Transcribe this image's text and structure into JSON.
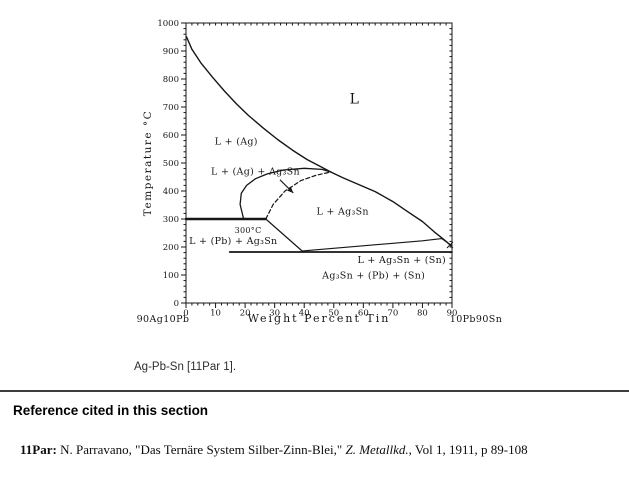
{
  "figure": {
    "caption": "Ag-Pb-Sn [11Par 1]."
  },
  "reference_section": {
    "heading": "Reference cited in this section",
    "reference": {
      "id": "11Par:",
      "pre": " N. Parravano, \"Das Ternäre System Silber-Zinn-Blei,\" ",
      "journal": "Z. Metallkd.",
      "post": ", Vol 1, 1911, p 89-108"
    }
  },
  "chart_data": {
    "type": "line",
    "title": "",
    "xlabel": "Weight Percent Tin",
    "ylabel": "Temperature °C",
    "xlim": [
      0,
      90
    ],
    "ylim": [
      0,
      1000
    ],
    "xticks": [
      0,
      10,
      20,
      30,
      40,
      50,
      60,
      70,
      80,
      90
    ],
    "yticks": [
      0,
      100,
      200,
      300,
      400,
      500,
      600,
      700,
      800,
      900,
      1000
    ],
    "grid": false,
    "corner_labels": {
      "left": "90Ag10Pb",
      "right": "10Pb90Sn"
    },
    "region_labels": [
      {
        "text": "L",
        "x": 57,
        "y": 730,
        "size": 14
      },
      {
        "text": "L + (Ag)",
        "x": 17,
        "y": 578,
        "size": 9.5
      },
      {
        "text": "L + (Ag) + Ag₃Sn",
        "x": 23.5,
        "y": 470,
        "size": 9.5
      },
      {
        "text": "L + Ag₃Sn",
        "x": 53,
        "y": 328,
        "size": 9.5
      },
      {
        "text": "300°C",
        "x": 21,
        "y": 260,
        "size": 8
      },
      {
        "text": "L + (Pb) + Ag₃Sn",
        "x": 16,
        "y": 222,
        "size": 9.5
      },
      {
        "text": "L + Ag₃Sn + (Sn)",
        "x": 73,
        "y": 155,
        "size": 9.5
      },
      {
        "text": "Ag₃Sn + (Pb) + (Sn)",
        "x": 63.5,
        "y": 100,
        "size": 9.5
      }
    ],
    "series": [
      {
        "name": "liquidus-left",
        "style": "solid",
        "width": 1.4,
        "points": [
          [
            0.2,
            950
          ],
          [
            2,
            906
          ],
          [
            5,
            858
          ],
          [
            9,
            806
          ],
          [
            13,
            757
          ],
          [
            17,
            712
          ],
          [
            21,
            671
          ],
          [
            26,
            626
          ],
          [
            31,
            584
          ],
          [
            36,
            546
          ],
          [
            41,
            512
          ],
          [
            45,
            490
          ],
          [
            49,
            468
          ]
        ]
      },
      {
        "name": "liquidus-right",
        "style": "solid",
        "width": 1.4,
        "points": [
          [
            49,
            468
          ],
          [
            53,
            448
          ],
          [
            58,
            425
          ],
          [
            64,
            398
          ],
          [
            70,
            362
          ],
          [
            75,
            326
          ],
          [
            80,
            291
          ],
          [
            84,
            254
          ],
          [
            87,
            229
          ],
          [
            89.8,
            204
          ]
        ]
      },
      {
        "name": "ag-ag3sn-boundary",
        "style": "solid",
        "width": 1.3,
        "points": [
          [
            19.5,
            300
          ],
          [
            18.3,
            352
          ],
          [
            18.7,
            392
          ],
          [
            20.5,
            420
          ],
          [
            23.5,
            444
          ],
          [
            27.5,
            461
          ],
          [
            33,
            475
          ],
          [
            40,
            481
          ],
          [
            46,
            477
          ],
          [
            49,
            468
          ]
        ]
      },
      {
        "name": "metastable-dashed-boundary",
        "style": "dashed",
        "width": 1.2,
        "points": [
          [
            27,
            300
          ],
          [
            29.5,
            352
          ],
          [
            33.5,
            400
          ],
          [
            39,
            438
          ],
          [
            44,
            456
          ],
          [
            49,
            468
          ]
        ]
      },
      {
        "name": "isotherm-300C",
        "style": "solid",
        "width": 2.4,
        "points": [
          [
            0,
            300
          ],
          [
            27,
            300
          ]
        ]
      },
      {
        "name": "pb-ag3sn-boundary",
        "style": "solid",
        "width": 1.2,
        "points": [
          [
            27,
            300
          ],
          [
            39.5,
            184
          ]
        ]
      },
      {
        "name": "eutectic-isotherm",
        "style": "solid",
        "width": 1.7,
        "points": [
          [
            14.8,
            182
          ],
          [
            90,
            182
          ]
        ]
      },
      {
        "name": "sn-boundary",
        "style": "solid",
        "width": 1.1,
        "points": [
          [
            39.5,
            186
          ],
          [
            80,
            222
          ],
          [
            86.5,
            230
          ],
          [
            89.8,
            205
          ]
        ]
      }
    ],
    "annotations": {
      "arrow": {
        "from": [
          31.8,
          440
        ],
        "to": [
          36.3,
          393
        ]
      },
      "x_marker": [
        89.3,
        207
      ]
    }
  }
}
